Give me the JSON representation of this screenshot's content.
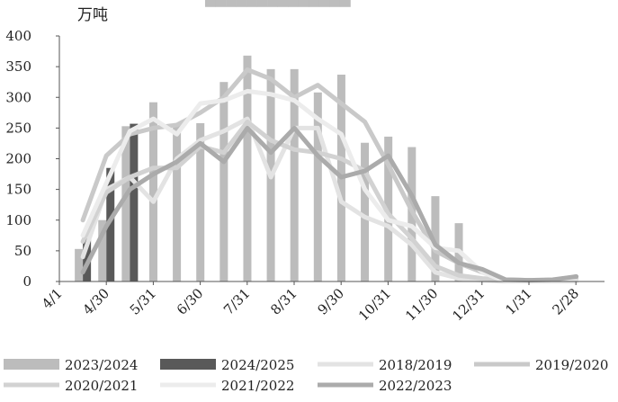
{
  "chart_data": {
    "type": "bar",
    "title": "",
    "unit_label": "万吨",
    "ylim": [
      0,
      400
    ],
    "yticks": [
      0,
      50,
      100,
      150,
      200,
      250,
      300,
      350,
      400
    ],
    "xticks": [
      "4/1",
      "4/30",
      "5/31",
      "6/30",
      "7/31",
      "8/31",
      "9/30",
      "10/31",
      "11/30",
      "12/31",
      "1/31",
      "2/28"
    ],
    "grid": false,
    "legend_position": "bottom",
    "colors": {
      "2023/2024": "#bcbcbc",
      "2024/2025": "#595959",
      "2018/2019": "#e3e3e3",
      "2019/2020": "#c9c9c9",
      "2020/2021": "#d2d2d2",
      "2021/2022": "#ececec",
      "2022/2023": "#ababab"
    },
    "bar_series": [
      {
        "name": "2023/2024",
        "x": [
          1,
          2,
          3,
          4,
          5,
          6,
          7,
          8,
          9,
          10,
          11,
          12,
          13,
          14,
          15,
          16,
          17,
          18
        ],
        "values": [
          53,
          100,
          253,
          292,
          255,
          258,
          325,
          368,
          346,
          346,
          308,
          337,
          226,
          236,
          219,
          139,
          95,
          4
        ]
      },
      {
        "name": "2024/2025",
        "x": [
          1,
          2,
          3
        ],
        "values": [
          70,
          185,
          257
        ]
      }
    ],
    "line_series": [
      {
        "name": "2018/2019",
        "points": [
          [
            1,
            40
          ],
          [
            2,
            150
          ],
          [
            3,
            170
          ],
          [
            4,
            130
          ],
          [
            5,
            200
          ],
          [
            6,
            230
          ],
          [
            7,
            245
          ],
          [
            8,
            265
          ],
          [
            9,
            170
          ],
          [
            10,
            250
          ],
          [
            11,
            250
          ],
          [
            12,
            130
          ],
          [
            13,
            105
          ],
          [
            14,
            90
          ],
          [
            15,
            60
          ],
          [
            16,
            15
          ],
          [
            17,
            5
          ],
          [
            18,
            2
          ],
          [
            19,
            0
          ],
          [
            20,
            0
          ],
          [
            21,
            0
          ],
          [
            22,
            0
          ]
        ]
      },
      {
        "name": "2019/2020",
        "points": [
          [
            1,
            100
          ],
          [
            2,
            205
          ],
          [
            3,
            240
          ],
          [
            4,
            250
          ],
          [
            5,
            255
          ],
          [
            6,
            275
          ],
          [
            7,
            300
          ],
          [
            8,
            345
          ],
          [
            9,
            330
          ],
          [
            10,
            300
          ],
          [
            11,
            320
          ],
          [
            12,
            290
          ],
          [
            13,
            260
          ],
          [
            14,
            190
          ],
          [
            15,
            115
          ],
          [
            16,
            50
          ],
          [
            17,
            30
          ],
          [
            18,
            15
          ],
          [
            19,
            3
          ],
          [
            20,
            2
          ],
          [
            21,
            2
          ],
          [
            22,
            8
          ]
        ]
      },
      {
        "name": "2020/2021",
        "points": [
          [
            1,
            65
          ],
          [
            2,
            145
          ],
          [
            3,
            170
          ],
          [
            4,
            185
          ],
          [
            5,
            185
          ],
          [
            6,
            220
          ],
          [
            7,
            210
          ],
          [
            8,
            260
          ],
          [
            9,
            230
          ],
          [
            10,
            215
          ],
          [
            11,
            210
          ],
          [
            12,
            200
          ],
          [
            13,
            180
          ],
          [
            14,
            110
          ],
          [
            15,
            70
          ],
          [
            16,
            25
          ],
          [
            17,
            10
          ],
          [
            18,
            5
          ],
          [
            19,
            3
          ],
          [
            20,
            2
          ],
          [
            21,
            2
          ],
          [
            22,
            5
          ]
        ]
      },
      {
        "name": "2021/2022",
        "points": [
          [
            1,
            75
          ],
          [
            2,
            160
          ],
          [
            3,
            245
          ],
          [
            4,
            265
          ],
          [
            5,
            240
          ],
          [
            6,
            290
          ],
          [
            7,
            295
          ],
          [
            8,
            310
          ],
          [
            9,
            305
          ],
          [
            10,
            295
          ],
          [
            11,
            265
          ],
          [
            12,
            240
          ],
          [
            13,
            150
          ],
          [
            14,
            100
          ],
          [
            15,
            90
          ],
          [
            16,
            55
          ],
          [
            17,
            50
          ],
          [
            18,
            15
          ],
          [
            19,
            0
          ],
          [
            20,
            0
          ],
          [
            21,
            0
          ],
          [
            22,
            0
          ]
        ]
      },
      {
        "name": "2022/2023",
        "points": [
          [
            1,
            15
          ],
          [
            2,
            90
          ],
          [
            3,
            150
          ],
          [
            4,
            175
          ],
          [
            5,
            195
          ],
          [
            6,
            225
          ],
          [
            7,
            195
          ],
          [
            8,
            250
          ],
          [
            9,
            210
          ],
          [
            10,
            250
          ],
          [
            11,
            205
          ],
          [
            12,
            170
          ],
          [
            13,
            180
          ],
          [
            14,
            205
          ],
          [
            15,
            140
          ],
          [
            16,
            60
          ],
          [
            17,
            30
          ],
          [
            18,
            20
          ],
          [
            19,
            3
          ],
          [
            20,
            2
          ],
          [
            21,
            3
          ],
          [
            22,
            8
          ]
        ]
      }
    ]
  }
}
